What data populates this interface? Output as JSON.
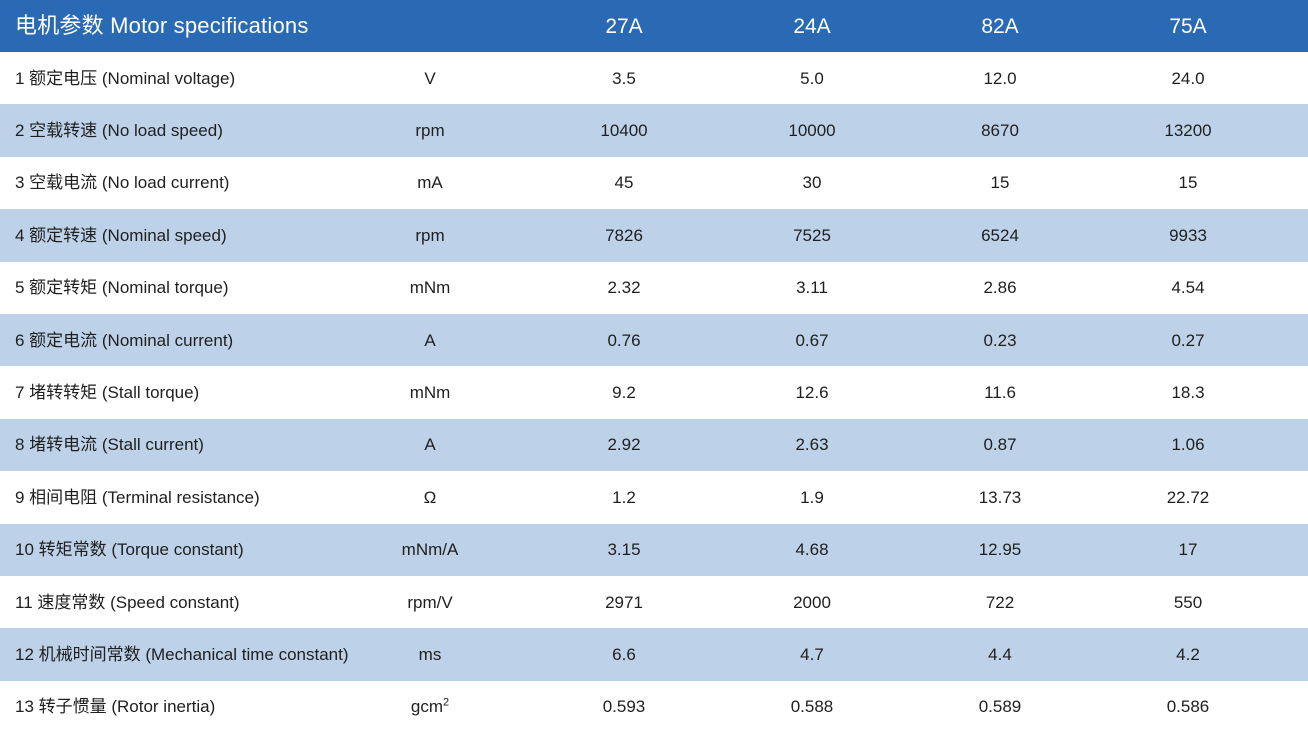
{
  "header": {
    "title": "电机参数  Motor specifications",
    "unit_label": "",
    "models": [
      "27A",
      "24A",
      "82A",
      "75A"
    ]
  },
  "rows": [
    {
      "label": "1 额定电压 (Nominal voltage)",
      "unit": "V",
      "unit_sup": "",
      "values": [
        "3.5",
        "5.0",
        "12.0",
        "24.0"
      ]
    },
    {
      "label": "2 空载转速 (No load speed)",
      "unit": "rpm",
      "unit_sup": "",
      "values": [
        "10400",
        "10000",
        "8670",
        "13200"
      ]
    },
    {
      "label": "3 空载电流 (No load current)",
      "unit": "mA",
      "unit_sup": "",
      "values": [
        "45",
        "30",
        "15",
        "15"
      ]
    },
    {
      "label": "4 额定转速 (Nominal speed)",
      "unit": "rpm",
      "unit_sup": "",
      "values": [
        "7826",
        "7525",
        "6524",
        "9933"
      ]
    },
    {
      "label": "5 额定转矩 (Nominal torque)",
      "unit": "mNm",
      "unit_sup": "",
      "values": [
        "2.32",
        "3.11",
        "2.86",
        "4.54"
      ]
    },
    {
      "label": "6 额定电流 (Nominal current)",
      "unit": "A",
      "unit_sup": "",
      "values": [
        "0.76",
        "0.67",
        "0.23",
        "0.27"
      ]
    },
    {
      "label": "7 堵转转矩 (Stall torque)",
      "unit": "mNm",
      "unit_sup": "",
      "values": [
        "9.2",
        "12.6",
        "11.6",
        "18.3"
      ]
    },
    {
      "label": "8 堵转电流 (Stall current)",
      "unit": "A",
      "unit_sup": "",
      "values": [
        "2.92",
        "2.63",
        "0.87",
        "1.06"
      ]
    },
    {
      "label": "9 相间电阻 (Terminal resistance)",
      "unit": "Ω",
      "unit_sup": "",
      "values": [
        "1.2",
        "1.9",
        "13.73",
        "22.72"
      ]
    },
    {
      "label": "10 转矩常数 (Torque constant)",
      "unit": "mNm/A",
      "unit_sup": "",
      "values": [
        "3.15",
        "4.68",
        "12.95",
        "17"
      ]
    },
    {
      "label": "11 速度常数 (Speed constant)",
      "unit": "rpm/V",
      "unit_sup": "",
      "values": [
        "2971",
        "2000",
        "722",
        "550"
      ]
    },
    {
      "label": "12 机械时间常数 (Mechanical time constant)",
      "unit": "ms",
      "unit_sup": "",
      "values": [
        "6.6",
        "4.7",
        "4.4",
        "4.2"
      ]
    },
    {
      "label": "13 转子惯量 (Rotor inertia)",
      "unit": "gcm",
      "unit_sup": "2",
      "values": [
        "0.593",
        "0.588",
        "0.589",
        "0.586"
      ]
    }
  ],
  "colors": {
    "header_bg": "#2a6ab4",
    "header_text": "#ffffff",
    "row_bg": "#ffffff",
    "row_alt_bg": "#bdd2e8",
    "text": "#1f1f1f"
  }
}
